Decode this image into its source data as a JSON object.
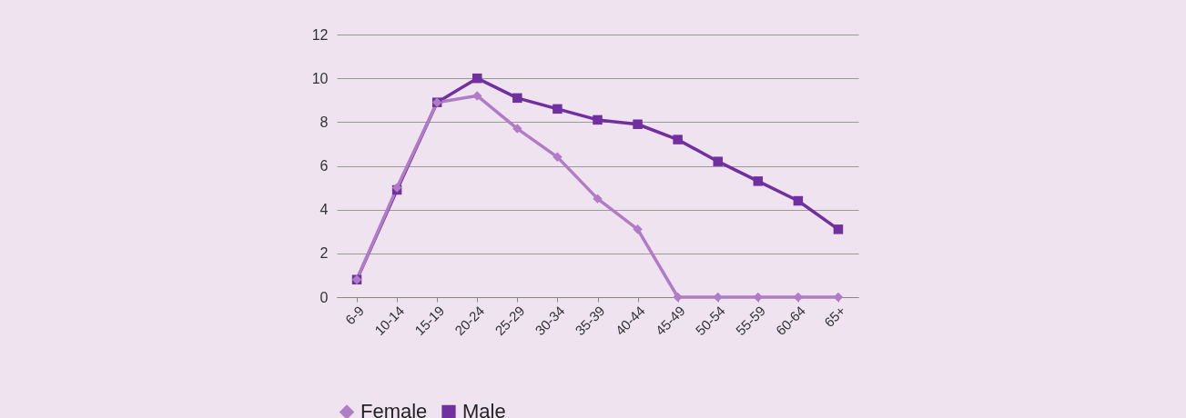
{
  "chart_data": {
    "type": "line",
    "categories": [
      "6-9",
      "10-14",
      "15-19",
      "20-24",
      "25-29",
      "30-34",
      "35-39",
      "40-44",
      "45-49",
      "50-54",
      "55-59",
      "60-64",
      "65+"
    ],
    "series": [
      {
        "name": "Female",
        "color": "#b07cc6",
        "marker": "diamond",
        "values": [
          0.8,
          5.0,
          8.9,
          9.2,
          7.7,
          6.4,
          4.5,
          3.1,
          0,
          0,
          0,
          0,
          0
        ]
      },
      {
        "name": "Male",
        "color": "#7030a0",
        "marker": "square",
        "values": [
          0.8,
          4.9,
          8.9,
          10.0,
          9.1,
          8.6,
          8.1,
          7.9,
          7.2,
          6.2,
          5.3,
          4.4,
          3.1
        ]
      }
    ],
    "ylim": [
      0,
      12
    ],
    "yticks": [
      0,
      2,
      4,
      6,
      8,
      10,
      12
    ],
    "grid": "y",
    "legend": "bottom",
    "line_style": "solid"
  }
}
